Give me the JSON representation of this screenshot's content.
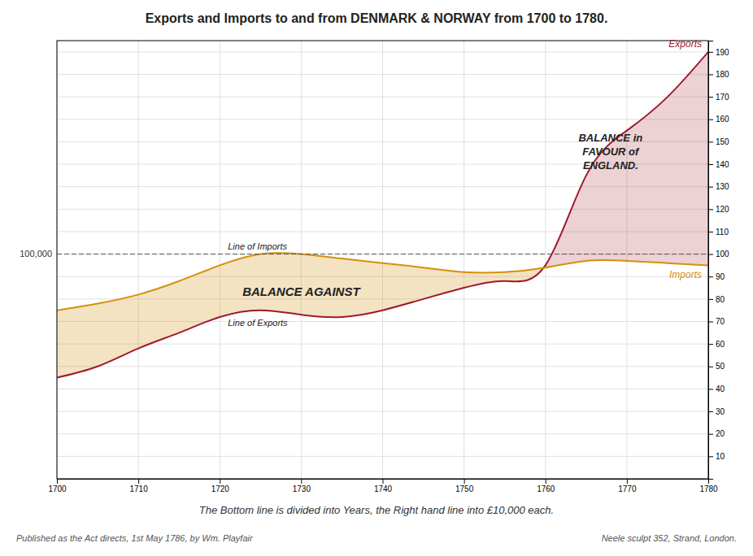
{
  "chart_data": {
    "type": "line",
    "title": "Exports  and Imports  to  and  from  DENMARK & NORWAY  from 1700  to 1780.",
    "subtitle": "The Bottom line is divided into Years, the Right hand line into £10,000 each.",
    "footnote_left": "Published as the Act directs, 1st May 1786, by Wm. Playfair",
    "footnote_right": "Neele sculpt 352, Strand, London.",
    "x": [
      1700,
      1705,
      1710,
      1715,
      1720,
      1725,
      1730,
      1735,
      1740,
      1745,
      1750,
      1755,
      1760,
      1765,
      1770,
      1775,
      1780
    ],
    "series": [
      {
        "name": "Exports",
        "color": "#a0192c",
        "values": [
          45,
          50,
          58,
          65,
          72,
          75,
          73,
          72,
          75,
          80,
          85,
          88,
          95,
          135,
          155,
          170,
          190
        ]
      },
      {
        "name": "Imports",
        "color": "#d4900a",
        "values": [
          75,
          78,
          82,
          88,
          95,
          100,
          100,
          98,
          96,
          94,
          92,
          92,
          94,
          97,
          97,
          96,
          95
        ]
      }
    ],
    "xlim": [
      1700,
      1780
    ],
    "ylim": [
      0,
      195
    ],
    "xticks": [
      1700,
      1710,
      1720,
      1730,
      1740,
      1750,
      1760,
      1770,
      1780
    ],
    "yticks": [
      10,
      20,
      30,
      40,
      50,
      60,
      70,
      80,
      90,
      100,
      110,
      120,
      130,
      140,
      150,
      160,
      170,
      180,
      190
    ],
    "grid": true,
    "hlines": [
      {
        "value": 100,
        "label": "100,000"
      }
    ],
    "annotations": [
      {
        "text": "BALANCE AGAINST",
        "x": 1730,
        "y": 83
      },
      {
        "text": "BALANCE in\nFAVOUR of\nENGLAND.",
        "x": 1768,
        "y": 145
      },
      {
        "text": "Line of Imports",
        "x": 1721,
        "y": 102
      },
      {
        "text": "Line of Exports",
        "x": 1721,
        "y": 71
      }
    ]
  }
}
